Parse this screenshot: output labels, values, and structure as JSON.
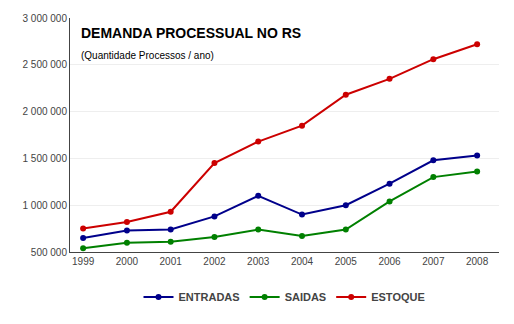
{
  "chart_data": {
    "type": "line",
    "title": "DEMANDA PROCESSUAL NO RS",
    "subtitle": "(Quantidade Processos / ano)",
    "x": [
      1999,
      2000,
      2001,
      2002,
      2003,
      2004,
      2005,
      2006,
      2007,
      2008
    ],
    "series": [
      {
        "name": "ENTRADAS",
        "color": "#00008B",
        "values": [
          650000,
          730000,
          740000,
          880000,
          1100000,
          900000,
          1000000,
          1230000,
          1480000,
          1530000
        ]
      },
      {
        "name": "SAIDAS",
        "color": "#008000",
        "values": [
          540000,
          600000,
          610000,
          660000,
          740000,
          670000,
          740000,
          1040000,
          1300000,
          1360000
        ]
      },
      {
        "name": "ESTOQUE",
        "color": "#CC0000",
        "values": [
          750000,
          820000,
          930000,
          1450000,
          1680000,
          1850000,
          2180000,
          2350000,
          2560000,
          2720000
        ]
      }
    ],
    "xlim": [
      1998.7,
      2008.5
    ],
    "xticks": [
      1999,
      2000,
      2001,
      2002,
      2003,
      2004,
      2005,
      2006,
      2007,
      2008
    ],
    "ylim": [
      500000,
      3000000
    ],
    "yticks": [
      {
        "value": 500000,
        "label": "500 000"
      },
      {
        "value": 1000000,
        "label": "1 000 000"
      },
      {
        "value": 1500000,
        "label": "1 500 000"
      },
      {
        "value": 2000000,
        "label": "2 000 000"
      },
      {
        "value": 2500000,
        "label": "2 500 000"
      },
      {
        "value": 3000000,
        "label": "3 000 000"
      }
    ],
    "grid": "y",
    "legend": "bottom",
    "marker": "circle",
    "line_style": "solid"
  }
}
